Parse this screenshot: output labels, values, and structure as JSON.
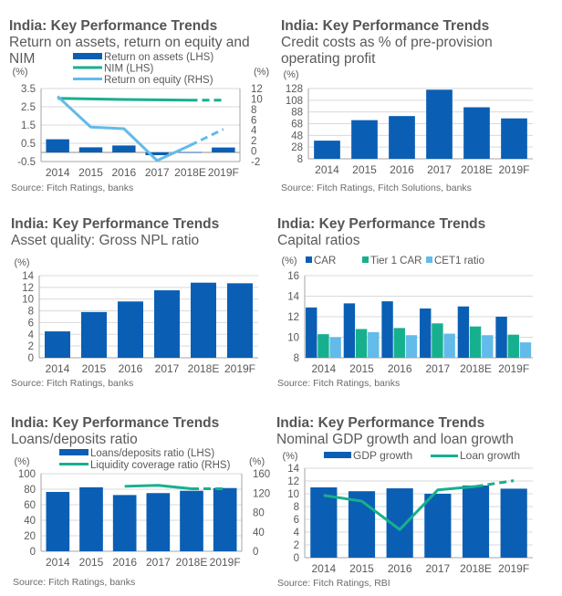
{
  "colors": {
    "dark_blue": "#0a5fb4",
    "teal": "#17b08e",
    "light_blue": "#62bbe9",
    "grid": "#d9d9d9",
    "axis": "#a6a6a6"
  },
  "chart_data": [
    {
      "id": "roa-roe-nim",
      "type": "bar",
      "title": "India: Key Performance Trends",
      "subtitle": "Return on assets, return on equity and NIM",
      "ylabel": "(%)",
      "ylabel_right": "(%)",
      "categories": [
        "2014",
        "2015",
        "2016",
        "2017",
        "2018E",
        "2019F"
      ],
      "ylim": [
        -0.5,
        3.5
      ],
      "yticks": [
        "3.5",
        "2.5",
        "1.5",
        "0.5",
        "-0.5"
      ],
      "ylim_right": [
        -2,
        12
      ],
      "yticks_right": [
        "12",
        "10",
        "8",
        "6",
        "4",
        "2",
        "0",
        "-2"
      ],
      "series": [
        {
          "name": "Return on assets (LHS)",
          "kind": "bar",
          "axis": "left",
          "color": "dark_blue",
          "values": [
            0.72,
            0.28,
            0.38,
            -0.15,
            0.02,
            0.27
          ]
        },
        {
          "name": "NIM (LHS)",
          "kind": "line",
          "axis": "left",
          "color": "teal",
          "values": [
            2.96,
            2.93,
            2.9,
            2.88,
            2.86,
            2.86
          ],
          "dashed_from_index": 4
        },
        {
          "name": "Return on equity (RHS)",
          "kind": "line",
          "axis": "right",
          "color": "light_blue",
          "values": [
            10.5,
            4.6,
            4.3,
            -1.8,
            1.1,
            4.2
          ],
          "dashed_from_index": 4
        }
      ],
      "legend": "top-right",
      "source": "Source: Fitch Ratings, banks"
    },
    {
      "id": "credit-costs",
      "type": "bar",
      "title": "India: Key Performance Trends",
      "subtitle": "Credit costs as % of pre-provision operating profit",
      "ylabel": "(%)",
      "categories": [
        "2014",
        "2015",
        "2016",
        "2017",
        "2018E",
        "2019F"
      ],
      "ylim": [
        8,
        128
      ],
      "yticks": [
        "128",
        "108",
        "88",
        "68",
        "48",
        "28",
        "8"
      ],
      "series": [
        {
          "name": "Credit costs",
          "kind": "bar",
          "color": "dark_blue",
          "values": [
            39,
            74,
            81,
            126,
            96,
            77
          ]
        }
      ],
      "source": "Source: Fitch Ratings, Fitch Solutions, banks"
    },
    {
      "id": "npl",
      "type": "bar",
      "title": "India: Key Performance Trends",
      "subtitle": "Asset quality: Gross NPL ratio",
      "ylabel": "(%)",
      "categories": [
        "2014",
        "2015",
        "2016",
        "2017",
        "2018E",
        "2019F"
      ],
      "ylim": [
        0,
        14
      ],
      "yticks": [
        "14",
        "12",
        "10",
        "8",
        "6",
        "4",
        "2",
        "0"
      ],
      "series": [
        {
          "name": "Gross NPL ratio",
          "kind": "bar",
          "color": "dark_blue",
          "values": [
            4.5,
            7.8,
            9.6,
            11.5,
            12.8,
            12.7
          ]
        }
      ],
      "source": "Source: Fitch Ratings, banks"
    },
    {
      "id": "capital",
      "type": "bar",
      "title": "India: Key Performance Trends",
      "subtitle": "Capital ratios",
      "ylabel": "(%)",
      "categories": [
        "2014",
        "2015",
        "2016",
        "2017",
        "2018E",
        "2019F"
      ],
      "ylim": [
        8,
        16
      ],
      "yticks": [
        "16",
        "14",
        "12",
        "10",
        "8"
      ],
      "series": [
        {
          "name": "CAR",
          "kind": "bar",
          "color": "dark_blue",
          "values": [
            12.9,
            13.3,
            13.5,
            12.8,
            13.0,
            12.0
          ]
        },
        {
          "name": "Tier 1 CAR",
          "kind": "bar",
          "color": "teal",
          "values": [
            10.3,
            10.8,
            10.9,
            11.35,
            11.05,
            10.25
          ]
        },
        {
          "name": "CET1 ratio",
          "kind": "bar",
          "color": "light_blue",
          "values": [
            10.0,
            10.5,
            10.2,
            10.35,
            10.2,
            9.5
          ]
        }
      ],
      "legend": "top",
      "source": "Source: Fitch Ratings, banks"
    },
    {
      "id": "loans-deposits",
      "type": "bar",
      "title": "India: Key Performance Trends",
      "subtitle": "Loans/deposits ratio",
      "ylabel": "(%)",
      "categories": [
        "2014",
        "2015",
        "2016",
        "2017",
        "2018E",
        "2019F"
      ],
      "ylim": [
        0,
        100
      ],
      "yticks": [
        "100",
        "80",
        "60",
        "40",
        "20",
        "0"
      ],
      "ylim_right": [
        0,
        160
      ],
      "yticks_right": [
        "160",
        "120",
        "80",
        "40",
        "0"
      ],
      "series": [
        {
          "name": "Loans/deposits ratio (LHS)",
          "kind": "bar",
          "axis": "left",
          "color": "dark_blue",
          "values": [
            76.5,
            82.5,
            72.5,
            75,
            78,
            81.5
          ]
        },
        {
          "name": "Liquidity coverage ratio (RHS)",
          "kind": "line",
          "axis": "right",
          "color": "teal",
          "values": [
            null,
            null,
            134,
            136,
            129,
            129
          ],
          "dashed_from_index": 4
        }
      ],
      "legend": "top-right",
      "source": "Source: Fitch Ratings, banks"
    },
    {
      "id": "gdp-loan",
      "type": "bar",
      "title": "India: Key Performance Trends",
      "subtitle": "Nominal GDP growth and loan growth",
      "ylabel": "(%)",
      "categories": [
        "2014",
        "2015",
        "2016",
        "2017",
        "2018E",
        "2019F"
      ],
      "ylim": [
        0,
        14
      ],
      "yticks": [
        "14",
        "12",
        "10",
        "8",
        "6",
        "4",
        "2",
        "0"
      ],
      "series": [
        {
          "name": "GDP growth",
          "kind": "bar",
          "color": "dark_blue",
          "values": [
            11.0,
            10.4,
            10.85,
            10.0,
            11.3,
            10.8
          ]
        },
        {
          "name": "Loan growth",
          "kind": "line",
          "color": "teal",
          "values": [
            9.75,
            8.85,
            4.4,
            10.6,
            11.15,
            12.05
          ],
          "dashed_from_index": 4
        }
      ],
      "legend": "top",
      "source": "Source: Fitch Ratings, RBI"
    }
  ]
}
